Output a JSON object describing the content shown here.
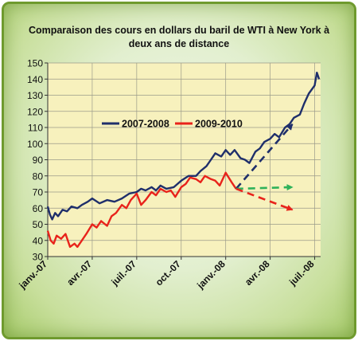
{
  "chart_data": {
    "type": "line",
    "title_line1": "Comparaison des cours en dollars du baril de WTI à New York à",
    "title_line2": "deux ans de distance",
    "x_tick_labels": [
      "janv.-07",
      "avr.-07",
      "juil.-07",
      "oct.-07",
      "janv.-08",
      "avr.-08",
      "juil.-08"
    ],
    "x_ticks_month_index": [
      0,
      3,
      6,
      9,
      12,
      15,
      18
    ],
    "x_range_months": [
      0,
      18.4
    ],
    "ylim": [
      30,
      150
    ],
    "y_ticks": [
      30,
      40,
      50,
      60,
      70,
      80,
      90,
      100,
      110,
      120,
      130,
      140,
      150
    ],
    "grid": true,
    "legend_position": "upper-left inside plot",
    "series": [
      {
        "name": "2007-2008",
        "color": "#1f2f6b",
        "x": [
          0,
          0.15,
          0.3,
          0.5,
          0.7,
          1.0,
          1.3,
          1.6,
          2.0,
          2.3,
          2.7,
          3.0,
          3.5,
          4.0,
          4.5,
          5.0,
          5.5,
          6.0,
          6.3,
          6.6,
          7.0,
          7.3,
          7.6,
          8.0,
          8.5,
          9.0,
          9.5,
          10.0,
          10.3,
          10.7,
          11.0,
          11.3,
          11.7,
          12.0,
          12.3,
          12.6,
          13.0,
          13.3,
          13.6,
          14.0,
          14.3,
          14.6,
          15.0,
          15.3,
          15.6,
          16.0,
          16.3,
          16.6,
          17.0,
          17.3,
          17.6,
          18.0,
          18.15,
          18.3
        ],
        "y": [
          61,
          56,
          53,
          57,
          55,
          59,
          58,
          61,
          60,
          62,
          64,
          66,
          63,
          65,
          64,
          66,
          69,
          70,
          72,
          71,
          73,
          71,
          74,
          72,
          73,
          77,
          80,
          80,
          83,
          86,
          90,
          94,
          92,
          96,
          93,
          96,
          91,
          90,
          88,
          95,
          97,
          101,
          103,
          106,
          104,
          110,
          112,
          116,
          118,
          125,
          131,
          136,
          144,
          140
        ]
      },
      {
        "name": "2009-2010",
        "color": "#e8231b",
        "x": [
          0,
          0.2,
          0.4,
          0.6,
          0.9,
          1.2,
          1.5,
          1.8,
          2.0,
          2.3,
          2.6,
          3.0,
          3.3,
          3.6,
          4.0,
          4.3,
          4.6,
          5.0,
          5.3,
          5.6,
          6.0,
          6.3,
          6.6,
          7.0,
          7.3,
          7.6,
          8.0,
          8.3,
          8.6,
          9.0,
          9.3,
          9.6,
          10.0,
          10.3,
          10.6,
          11.0,
          11.3,
          11.6,
          12.0,
          12.2,
          12.4,
          12.7
        ],
        "y": [
          46,
          40,
          38,
          43,
          41,
          44,
          36,
          38,
          36,
          40,
          44,
          50,
          48,
          52,
          49,
          55,
          57,
          62,
          60,
          65,
          69,
          62,
          65,
          70,
          68,
          72,
          70,
          71,
          67,
          73,
          75,
          79,
          78,
          76,
          80,
          78,
          77,
          74,
          82,
          79,
          76,
          72
        ]
      }
    ],
    "arrows": [
      {
        "color": "#1f2f6b",
        "from": [
          12.7,
          72
        ],
        "to": [
          16.5,
          112
        ]
      },
      {
        "color": "#2fb25a",
        "from": [
          12.7,
          72
        ],
        "to": [
          16.5,
          73
        ]
      },
      {
        "color": "#e8231b",
        "from": [
          12.7,
          72
        ],
        "to": [
          16.5,
          59
        ]
      }
    ]
  }
}
